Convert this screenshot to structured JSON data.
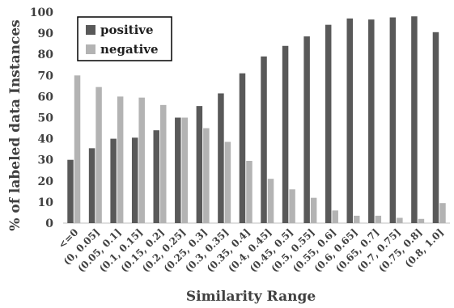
{
  "chart_data": {
    "type": "bar",
    "title": "",
    "xlabel": "Similarity Range",
    "ylabel": "% of labeled data Instances",
    "ylim": [
      0,
      100
    ],
    "yticks": [
      0,
      10,
      20,
      30,
      40,
      50,
      60,
      70,
      80,
      90,
      100
    ],
    "grid": false,
    "legend_position": "top-left",
    "categories": [
      "<=0",
      "(0, 0.05]",
      "(0.05, 0.1]",
      "(0.1, 0.15]",
      "(0.15, 0.2]",
      "(0.2, 0.25]",
      "(0.25, 0.3]",
      "(0.3, 0.35]",
      "(0.35, 0.4]",
      "(0.4, 0.45]",
      "(0.45, 0.5]",
      "(0.5, 0.55]",
      "(0.55, 0.6]",
      "(0.6, 0.65]",
      "(0.65, 0.7]",
      "(0.7, 0.75]",
      "(0.75, 0.8]",
      "(0.8, 1.0]"
    ],
    "series": [
      {
        "name": "positive",
        "color": "#595959",
        "values": [
          30,
          35.5,
          40,
          40.5,
          44,
          50,
          55.5,
          61.5,
          71,
          79,
          84,
          88.5,
          94,
          97,
          96.5,
          97.5,
          98,
          90.5
        ]
      },
      {
        "name": "negative",
        "color": "#b3b3b3",
        "values": [
          70,
          64.5,
          60,
          59.5,
          56,
          50,
          45,
          38.5,
          29.5,
          21,
          16,
          12,
          6,
          3.5,
          3.5,
          2.5,
          2,
          9.5
        ]
      }
    ]
  }
}
